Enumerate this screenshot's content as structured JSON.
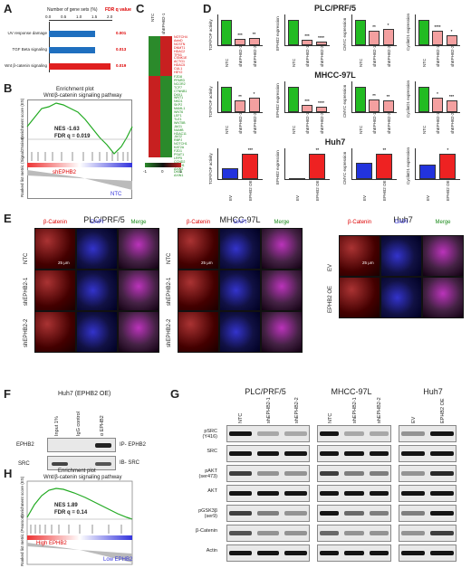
{
  "panels": {
    "A": "A",
    "B": "B",
    "C": "C",
    "D": "D",
    "E": "E",
    "F": "F",
    "G": "G",
    "H": "H"
  },
  "panelA": {
    "header_sets": "Number of gene sets (%)",
    "header_fdr": "FDR q value",
    "ticks": [
      "0.0",
      "0.5",
      "1.0",
      "1.5",
      "2.0"
    ],
    "color_blue": "#1f6fbf",
    "color_red": "#e02020",
    "chart_data": {
      "type": "bar",
      "orientation": "horizontal",
      "categories": [
        "UV response damage",
        "TGF Beta signaling",
        "Wnt β-catenin signaling"
      ],
      "values": [
        1.5,
        1.5,
        2.0
      ],
      "fdr": [
        "0.001",
        "0.013",
        "0.019"
      ],
      "xlim": [
        0,
        2.0
      ]
    }
  },
  "panelB": {
    "title1": "Enrichment plot",
    "title2": "Wnt/β-catenin signaling pathway",
    "nes": "NES -1.63",
    "fdr": "FDR q = 0.019",
    "high": "shEPHB2",
    "low": "NTC",
    "yaxis1": "Enrichment score (ES)",
    "yaxis2": "Ranked list metric (Signal2Noise)"
  },
  "panelC": {
    "col1": "NTC",
    "col2": "shEPHB2-1",
    "legend": [
      "-1",
      "0",
      "1"
    ],
    "genes_red": [
      "NOTCH4",
      "AxinD",
      "NCSTN",
      "DNMT1",
      "HDAC2",
      "TP53",
      "CSNK1E",
      "ACTG1",
      "HDAC5",
      "CUL1",
      "HEY2"
    ],
    "genes_green": [
      "FZD8",
      "PPARD",
      "NCOR2",
      "TCF7",
      "CTNNB1",
      "DKK1",
      "WNT1",
      "NKD1",
      "SKP2",
      "MAML1",
      "WNT6",
      "LEF1",
      "TLE1",
      "WNT5B",
      "JAG1",
      "NUMB",
      "HDAC11",
      "JAG2",
      "RBPJ",
      "NOTCH1",
      "KAT2A",
      "FZD1",
      "PSAT1",
      "LRP5",
      "CCND2",
      "PTCH1",
      "AXIN2",
      "DKK4",
      "AXIN1"
    ]
  },
  "panelD": {
    "line1": "PLC/PRF/5",
    "line2": "MHCC-97L",
    "line3": "Huh7",
    "ylabels": [
      "TOP/FOP activity",
      "EPHB2 expression",
      "CMYC expression",
      "CyclinD1 expression"
    ],
    "groups_sh": [
      "NTC",
      "shEPHB2-1",
      "shEPHB2-2"
    ],
    "groups_oe": [
      "EV",
      "EPHB2 OE"
    ],
    "chart_data": [
      {
        "type": "bar",
        "cell_line": "PLC/PRF/5",
        "ylabel": "TOP/FOP activity",
        "categories": [
          "NTC",
          "shEPHB2-1",
          "shEPHB2-2"
        ],
        "values": [
          1.0,
          0.25,
          0.28
        ],
        "sig": [
          "",
          "***",
          "**"
        ]
      },
      {
        "type": "bar",
        "cell_line": "PLC/PRF/5",
        "ylabel": "EPHB2 expression",
        "categories": [
          "NTC",
          "shEPHB2-1",
          "shEPHB2-2"
        ],
        "values": [
          1.0,
          0.2,
          0.15
        ],
        "sig": [
          "",
          "***",
          "****"
        ]
      },
      {
        "type": "bar",
        "cell_line": "PLC/PRF/5",
        "ylabel": "CMYC expression",
        "categories": [
          "NTC",
          "shEPHB2-1",
          "shEPHB2-2"
        ],
        "values": [
          1.0,
          0.55,
          0.65
        ],
        "sig": [
          "",
          "**",
          "*"
        ]
      },
      {
        "type": "bar",
        "cell_line": "PLC/PRF/5",
        "ylabel": "CyclinD1 expression",
        "categories": [
          "NTC",
          "shEPHB2-1",
          "shEPHB2-2"
        ],
        "values": [
          1.0,
          0.55,
          0.4
        ],
        "sig": [
          "",
          "****",
          "*"
        ]
      },
      {
        "type": "bar",
        "cell_line": "MHCC-97L",
        "ylabel": "TOP/FOP activity",
        "categories": [
          "NTC",
          "shEPHB2-1",
          "shEPHB2-2"
        ],
        "values": [
          1.0,
          0.45,
          0.55
        ],
        "sig": [
          "",
          "**",
          "*"
        ]
      },
      {
        "type": "bar",
        "cell_line": "MHCC-97L",
        "ylabel": "EPHB2 expression",
        "categories": [
          "NTC",
          "shEPHB2-1",
          "shEPHB2-2"
        ],
        "values": [
          1.0,
          0.28,
          0.2
        ],
        "sig": [
          "",
          "***",
          "****"
        ]
      },
      {
        "type": "bar",
        "cell_line": "MHCC-97L",
        "ylabel": "CMYC expression",
        "categories": [
          "NTC",
          "shEPHB2-1",
          "shEPHB2-2"
        ],
        "values": [
          1.0,
          0.5,
          0.45
        ],
        "sig": [
          "",
          "**",
          "**"
        ]
      },
      {
        "type": "bar",
        "cell_line": "MHCC-97L",
        "ylabel": "CyclinD1 expression",
        "categories": [
          "NTC",
          "shEPHB2-1",
          "shEPHB2-2"
        ],
        "values": [
          1.0,
          0.55,
          0.45
        ],
        "sig": [
          "",
          "*",
          "***"
        ]
      },
      {
        "type": "bar",
        "cell_line": "Huh7",
        "ylabel": "TOP/FOP activity",
        "categories": [
          "EV",
          "EPHB2 OE"
        ],
        "values": [
          1.0,
          2.3
        ],
        "sig": [
          "",
          "***"
        ]
      },
      {
        "type": "bar",
        "cell_line": "Huh7",
        "ylabel": "EPHB2 expression",
        "categories": [
          "EV",
          "EPHB2 OE"
        ],
        "values": [
          0.03,
          1.0
        ],
        "sig": [
          "",
          "**"
        ]
      },
      {
        "type": "bar",
        "cell_line": "Huh7",
        "ylabel": "CMYC expression",
        "categories": [
          "EV",
          "EPHB2 OE"
        ],
        "values": [
          1.0,
          1.6
        ],
        "sig": [
          "",
          "**"
        ]
      },
      {
        "type": "bar",
        "cell_line": "Huh7",
        "ylabel": "CyclinD1 expression",
        "categories": [
          "EV",
          "EPHB2 OE"
        ],
        "values": [
          1.0,
          1.8
        ],
        "sig": [
          "",
          "*"
        ]
      }
    ]
  },
  "panelE": {
    "line1": "PLC/PRF/5",
    "line2": "MHCC-97L",
    "line3": "Huh7",
    "cols": [
      "β-Catenin",
      "DAPI",
      "Merge"
    ],
    "rows_sh": [
      "NTC",
      "shEPHB2-1",
      "shEPHB2-2"
    ],
    "rows_oe": [
      "EV",
      "EPHB2 OE"
    ],
    "scale": "25 μm"
  },
  "panelF": {
    "title": "Huh7 (EPHB2 OE)",
    "cols": [
      "Input 1%",
      "IgG control",
      "α EPHB2"
    ],
    "rows": [
      "EPHB2",
      "SRC"
    ],
    "ip": "IP- EPHB2",
    "ib": "IB- SRC"
  },
  "panelG": {
    "line1": "PLC/PRF/5",
    "line2": "MHCC-97L",
    "line3": "Huh7",
    "lanes_sh": [
      "NTC",
      "shEPHB2-1",
      "shEPHB2-2"
    ],
    "lanes_oe": [
      "EV",
      "EPHB2 OE"
    ],
    "rows": [
      "pSRC\n(Y416)",
      "SRC",
      "pAKT\n(ser473)",
      "AKT",
      "pGSK3β\n(ser9)",
      "β-Catenin",
      "Actin"
    ]
  },
  "panelH": {
    "title1": "Enrichment plot",
    "title2": "Wnt/β-catenin signaling pathway",
    "nes": "NES 1.89",
    "fdr": "FDR q = 0.14",
    "high": "High EPHB2",
    "low": "Low EPHB2",
    "yaxis1": "Enrichment score (ES)",
    "yaxis2": "Ranked list metric (Pearson)"
  }
}
